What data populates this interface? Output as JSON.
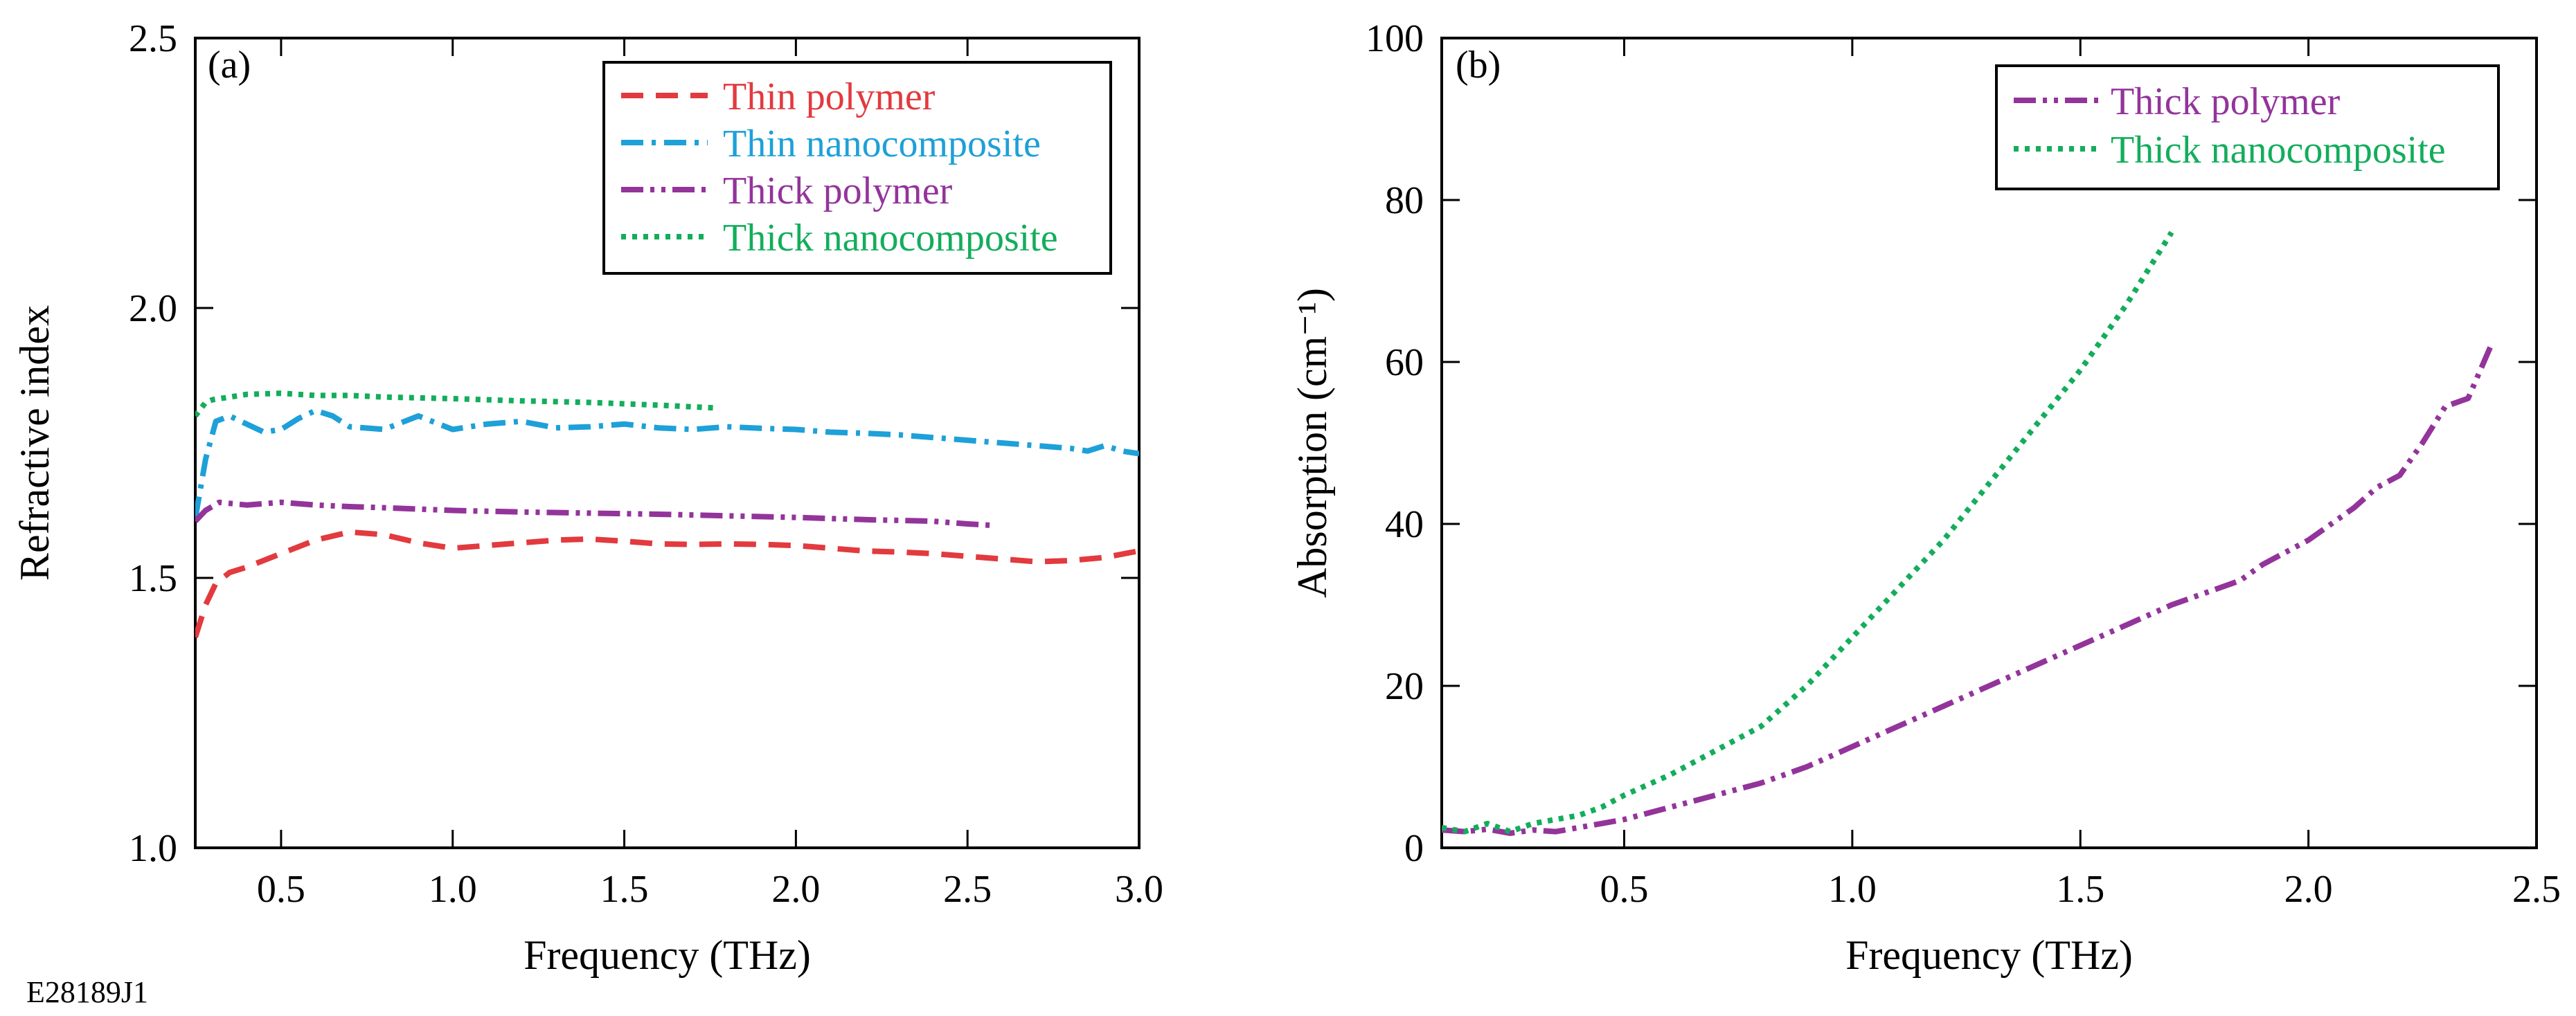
{
  "figure_id": "E28189J1",
  "colors": {
    "red": "#e23a3e",
    "blue": "#1ea0d8",
    "purple": "#93349b",
    "green": "#13ad5c"
  },
  "chart_data": [
    {
      "type": "line",
      "panel_label": "(a)",
      "xlabel": "Frequency (THz)",
      "ylabel": "Refractive index",
      "xlim": [
        0.25,
        3.0
      ],
      "ylim": [
        1.0,
        2.5
      ],
      "xticks": [
        "0.5",
        "1.0",
        "1.5",
        "2.0",
        "2.5",
        "3.0"
      ],
      "xtick_values": [
        0.5,
        1.0,
        1.5,
        2.0,
        2.5,
        3.0
      ],
      "yticks": [
        "1.0",
        "1.5",
        "2.0",
        "2.5"
      ],
      "ytick_values": [
        1.0,
        1.5,
        2.0,
        2.5
      ],
      "legend_position": "top-right",
      "series": [
        {
          "name": "Thin polymer",
          "color": "#e23a3e",
          "style": "dashed",
          "x": [
            0.25,
            0.28,
            0.31,
            0.35,
            0.4,
            0.5,
            0.6,
            0.7,
            0.8,
            0.9,
            1.0,
            1.1,
            1.2,
            1.3,
            1.4,
            1.5,
            1.6,
            1.7,
            1.8,
            1.9,
            2.0,
            2.1,
            2.2,
            2.3,
            2.4,
            2.5,
            2.6,
            2.7,
            2.8,
            2.9,
            3.0
          ],
          "y": [
            1.39,
            1.45,
            1.49,
            1.51,
            1.52,
            1.545,
            1.57,
            1.585,
            1.58,
            1.565,
            1.555,
            1.56,
            1.565,
            1.57,
            1.572,
            1.568,
            1.563,
            1.562,
            1.563,
            1.562,
            1.56,
            1.555,
            1.55,
            1.548,
            1.545,
            1.54,
            1.535,
            1.53,
            1.532,
            1.538,
            1.55
          ]
        },
        {
          "name": "Thin nanocomposite",
          "color": "#1ea0d8",
          "style": "dash-dot",
          "x": [
            0.25,
            0.28,
            0.31,
            0.35,
            0.4,
            0.45,
            0.5,
            0.55,
            0.6,
            0.65,
            0.7,
            0.8,
            0.9,
            1.0,
            1.1,
            1.2,
            1.3,
            1.4,
            1.5,
            1.6,
            1.7,
            1.8,
            1.9,
            2.0,
            2.1,
            2.2,
            2.3,
            2.4,
            2.5,
            2.6,
            2.7,
            2.8,
            2.85,
            2.9,
            2.95,
            3.0
          ],
          "y": [
            1.61,
            1.72,
            1.79,
            1.8,
            1.785,
            1.77,
            1.775,
            1.795,
            1.81,
            1.8,
            1.78,
            1.775,
            1.8,
            1.775,
            1.785,
            1.79,
            1.778,
            1.78,
            1.785,
            1.778,
            1.775,
            1.78,
            1.777,
            1.775,
            1.77,
            1.768,
            1.765,
            1.76,
            1.755,
            1.75,
            1.745,
            1.74,
            1.735,
            1.745,
            1.735,
            1.73
          ]
        },
        {
          "name": "Thick polymer",
          "color": "#93349b",
          "style": "dash-dot-dot",
          "x": [
            0.25,
            0.28,
            0.32,
            0.4,
            0.5,
            0.6,
            0.7,
            0.8,
            1.0,
            1.2,
            1.4,
            1.6,
            1.8,
            2.0,
            2.2,
            2.4,
            2.5,
            2.58
          ],
          "y": [
            1.605,
            1.625,
            1.64,
            1.635,
            1.64,
            1.635,
            1.632,
            1.63,
            1.625,
            1.622,
            1.62,
            1.618,
            1.615,
            1.612,
            1.608,
            1.605,
            1.6,
            1.597
          ]
        },
        {
          "name": "Thick nanocomposite",
          "color": "#13ad5c",
          "style": "dotted",
          "x": [
            0.25,
            0.28,
            0.3,
            0.35,
            0.4,
            0.5,
            0.6,
            0.7,
            0.8,
            1.0,
            1.2,
            1.4,
            1.6,
            1.76
          ],
          "y": [
            1.8,
            1.825,
            1.83,
            1.835,
            1.84,
            1.842,
            1.838,
            1.838,
            1.835,
            1.832,
            1.828,
            1.825,
            1.82,
            1.815
          ]
        }
      ]
    },
    {
      "type": "line",
      "panel_label": "(b)",
      "xlabel": "Frequency (THz)",
      "ylabel": "Absorption (cm⁻¹)",
      "xlim": [
        0.1,
        2.5
      ],
      "ylim": [
        0,
        100
      ],
      "xticks": [
        "0.5",
        "1.0",
        "1.5",
        "2.0",
        "2.5"
      ],
      "xtick_values": [
        0.5,
        1.0,
        1.5,
        2.0,
        2.5
      ],
      "yticks": [
        "0",
        "20",
        "40",
        "60",
        "80",
        "100"
      ],
      "ytick_values": [
        0,
        20,
        40,
        60,
        80,
        100
      ],
      "legend_position": "top-right",
      "series": [
        {
          "name": "Thick polymer",
          "color": "#93349b",
          "style": "dash-dot-dot",
          "x": [
            0.1,
            0.15,
            0.2,
            0.25,
            0.3,
            0.35,
            0.4,
            0.45,
            0.5,
            0.6,
            0.7,
            0.8,
            0.9,
            1.0,
            1.1,
            1.2,
            1.3,
            1.4,
            1.5,
            1.6,
            1.7,
            1.8,
            1.85,
            1.9,
            2.0,
            2.05,
            2.1,
            2.15,
            2.2,
            2.25,
            2.3,
            2.35,
            2.4
          ],
          "y": [
            2.2,
            2.0,
            2.3,
            1.8,
            2.2,
            2.0,
            2.5,
            3.0,
            3.5,
            5.0,
            6.5,
            8.0,
            10.0,
            12.5,
            15.0,
            17.5,
            20.0,
            22.5,
            25.0,
            27.5,
            30.0,
            32.0,
            33.0,
            35.0,
            38.0,
            40.0,
            42.0,
            44.5,
            46.0,
            50.0,
            54.5,
            55.5,
            62.0
          ]
        },
        {
          "name": "Thick nanocomposite",
          "color": "#13ad5c",
          "style": "dotted",
          "x": [
            0.1,
            0.15,
            0.2,
            0.25,
            0.3,
            0.35,
            0.4,
            0.45,
            0.5,
            0.6,
            0.7,
            0.8,
            0.9,
            1.0,
            1.1,
            1.2,
            1.3,
            1.4,
            1.5,
            1.6,
            1.7
          ],
          "y": [
            2.5,
            2.0,
            3.0,
            2.0,
            3.0,
            3.5,
            4.0,
            5.0,
            6.5,
            9.0,
            12.0,
            15.0,
            20.0,
            26.0,
            32.0,
            38.0,
            45.0,
            52.0,
            59.0,
            67.0,
            76.0
          ]
        }
      ]
    }
  ]
}
